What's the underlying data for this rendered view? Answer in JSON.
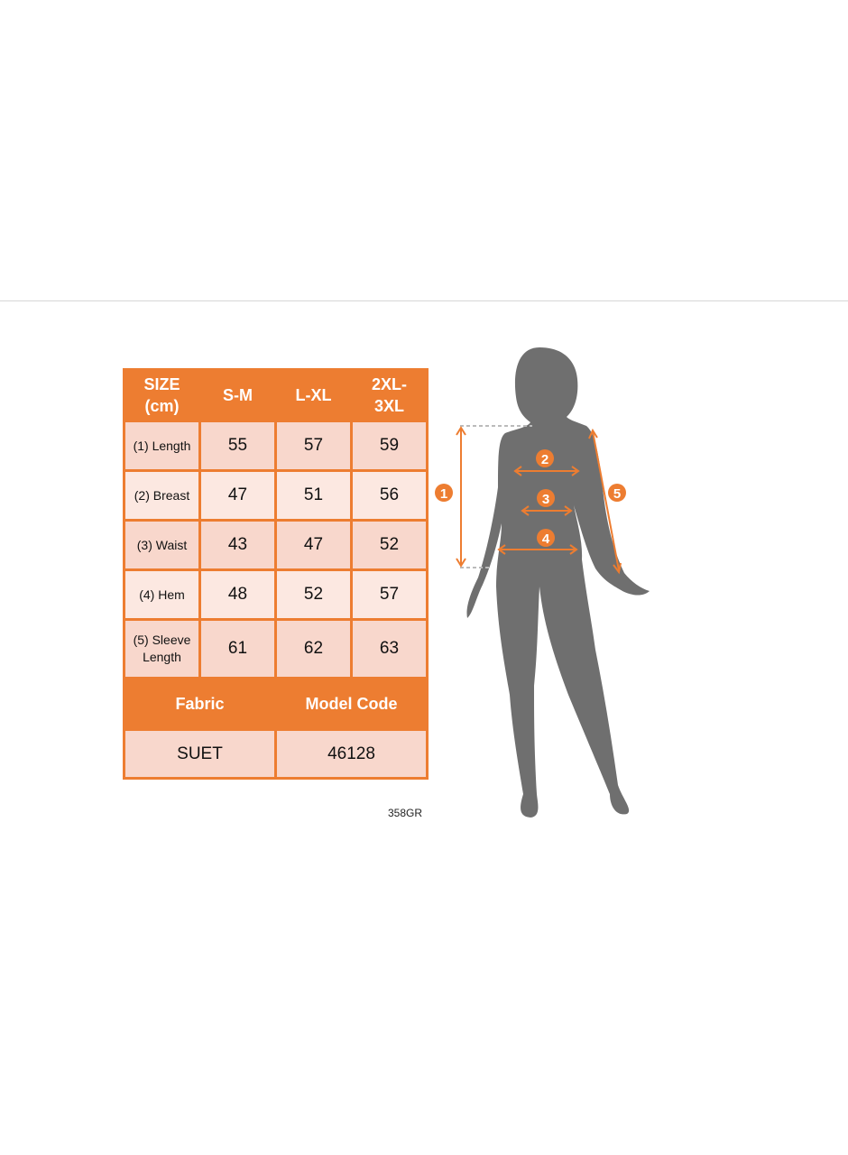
{
  "table": {
    "headers": [
      "SIZE\n(cm)",
      "S-M",
      "L-XL",
      "2XL-\n3XL"
    ],
    "header_lines": [
      [
        "SIZE",
        "(cm)"
      ],
      [
        "S-M"
      ],
      [
        "L-XL"
      ],
      [
        "2XL-",
        "3XL"
      ]
    ],
    "rows": [
      {
        "label": "(1) Length",
        "values": [
          "55",
          "57",
          "59"
        ]
      },
      {
        "label": "(2) Breast",
        "values": [
          "47",
          "51",
          "56"
        ]
      },
      {
        "label": "(3) Waist",
        "values": [
          "43",
          "47",
          "52"
        ]
      },
      {
        "label": "(4) Hem",
        "values": [
          "48",
          "52",
          "57"
        ]
      },
      {
        "label_lines": [
          "(5) Sleeve",
          "Length"
        ],
        "values": [
          "61",
          "62",
          "63"
        ]
      }
    ],
    "fabric_header": "Fabric",
    "model_code_header": "Model Code",
    "fabric": "SUET",
    "model_code": "46128"
  },
  "footer_code": "358GR",
  "figure": {
    "markers": [
      "1",
      "2",
      "3",
      "4",
      "5"
    ]
  },
  "colors": {
    "accent": "#ed7d31",
    "row_dark": "#f8d7cc",
    "row_light": "#fce8e1",
    "silhouette": "#6f6f6f"
  }
}
